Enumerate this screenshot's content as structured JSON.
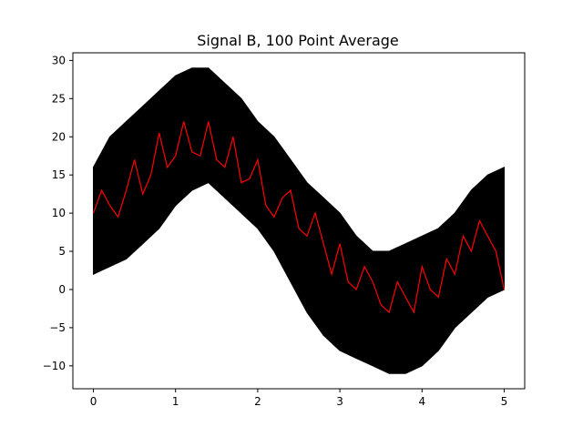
{
  "chart_data": {
    "type": "line",
    "title": "Signal B, 100 Point Average",
    "xlabel": "",
    "ylabel": "",
    "xlim": [
      -0.25,
      5.25
    ],
    "ylim": [
      -13,
      31
    ],
    "x_ticks": [
      0,
      1,
      2,
      3,
      4,
      5
    ],
    "x_tick_labels": [
      "0",
      "1",
      "2",
      "3",
      "4",
      "5"
    ],
    "y_ticks": [
      -10,
      -5,
      0,
      5,
      10,
      15,
      20,
      25,
      30
    ],
    "y_tick_labels": [
      "−10",
      "−5",
      "0",
      "5",
      "10",
      "15",
      "20",
      "25",
      "30"
    ],
    "grid": false,
    "legend": "none",
    "series": [
      {
        "color": "#000000",
        "x": [
          0.0,
          0.2,
          0.4,
          0.6,
          0.8,
          1.0,
          1.2,
          1.4,
          1.6,
          1.8,
          2.0,
          2.2,
          2.4,
          2.6,
          2.8,
          3.0,
          3.2,
          3.4,
          3.6,
          3.8,
          4.0,
          4.2,
          4.4,
          4.6,
          4.8,
          5.0
        ],
        "y_max": [
          16,
          20,
          22,
          24,
          26,
          28,
          29,
          29,
          27,
          25,
          22,
          20,
          17,
          14,
          12,
          10,
          7,
          5,
          5,
          6,
          7,
          8,
          10,
          13,
          15,
          16
        ],
        "y_min": [
          2,
          3,
          4,
          6,
          8,
          11,
          13,
          14,
          12,
          10,
          8,
          5,
          1,
          -3,
          -6,
          -8,
          -9,
          -10,
          -11,
          -11,
          -10,
          -8,
          -5,
          -3,
          -1,
          0
        ]
      },
      {
        "color": "#ff0000",
        "x": [
          0.0,
          0.1,
          0.2,
          0.3,
          0.4,
          0.5,
          0.6,
          0.7,
          0.8,
          0.9,
          1.0,
          1.1,
          1.2,
          1.3,
          1.4,
          1.5,
          1.6,
          1.7,
          1.8,
          1.9,
          2.0,
          2.1,
          2.2,
          2.3,
          2.4,
          2.5,
          2.6,
          2.7,
          2.8,
          2.9,
          3.0,
          3.1,
          3.2,
          3.3,
          3.4,
          3.5,
          3.6,
          3.7,
          3.8,
          3.9,
          4.0,
          4.1,
          4.2,
          4.3,
          4.4,
          4.5,
          4.6,
          4.7,
          4.8,
          4.9,
          5.0
        ],
        "y": [
          10,
          13,
          11,
          9.5,
          13,
          17,
          12.5,
          15,
          20.5,
          16,
          17.5,
          22,
          18,
          17.5,
          22,
          17,
          16,
          20,
          14,
          14.5,
          17,
          11,
          9.5,
          12,
          13,
          8,
          7,
          10,
          6,
          2,
          6,
          1,
          0,
          3,
          1,
          -2,
          -3,
          1,
          -1,
          -3,
          3,
          0,
          -1,
          4,
          2,
          7,
          5,
          9,
          7,
          5,
          0
        ]
      }
    ]
  }
}
